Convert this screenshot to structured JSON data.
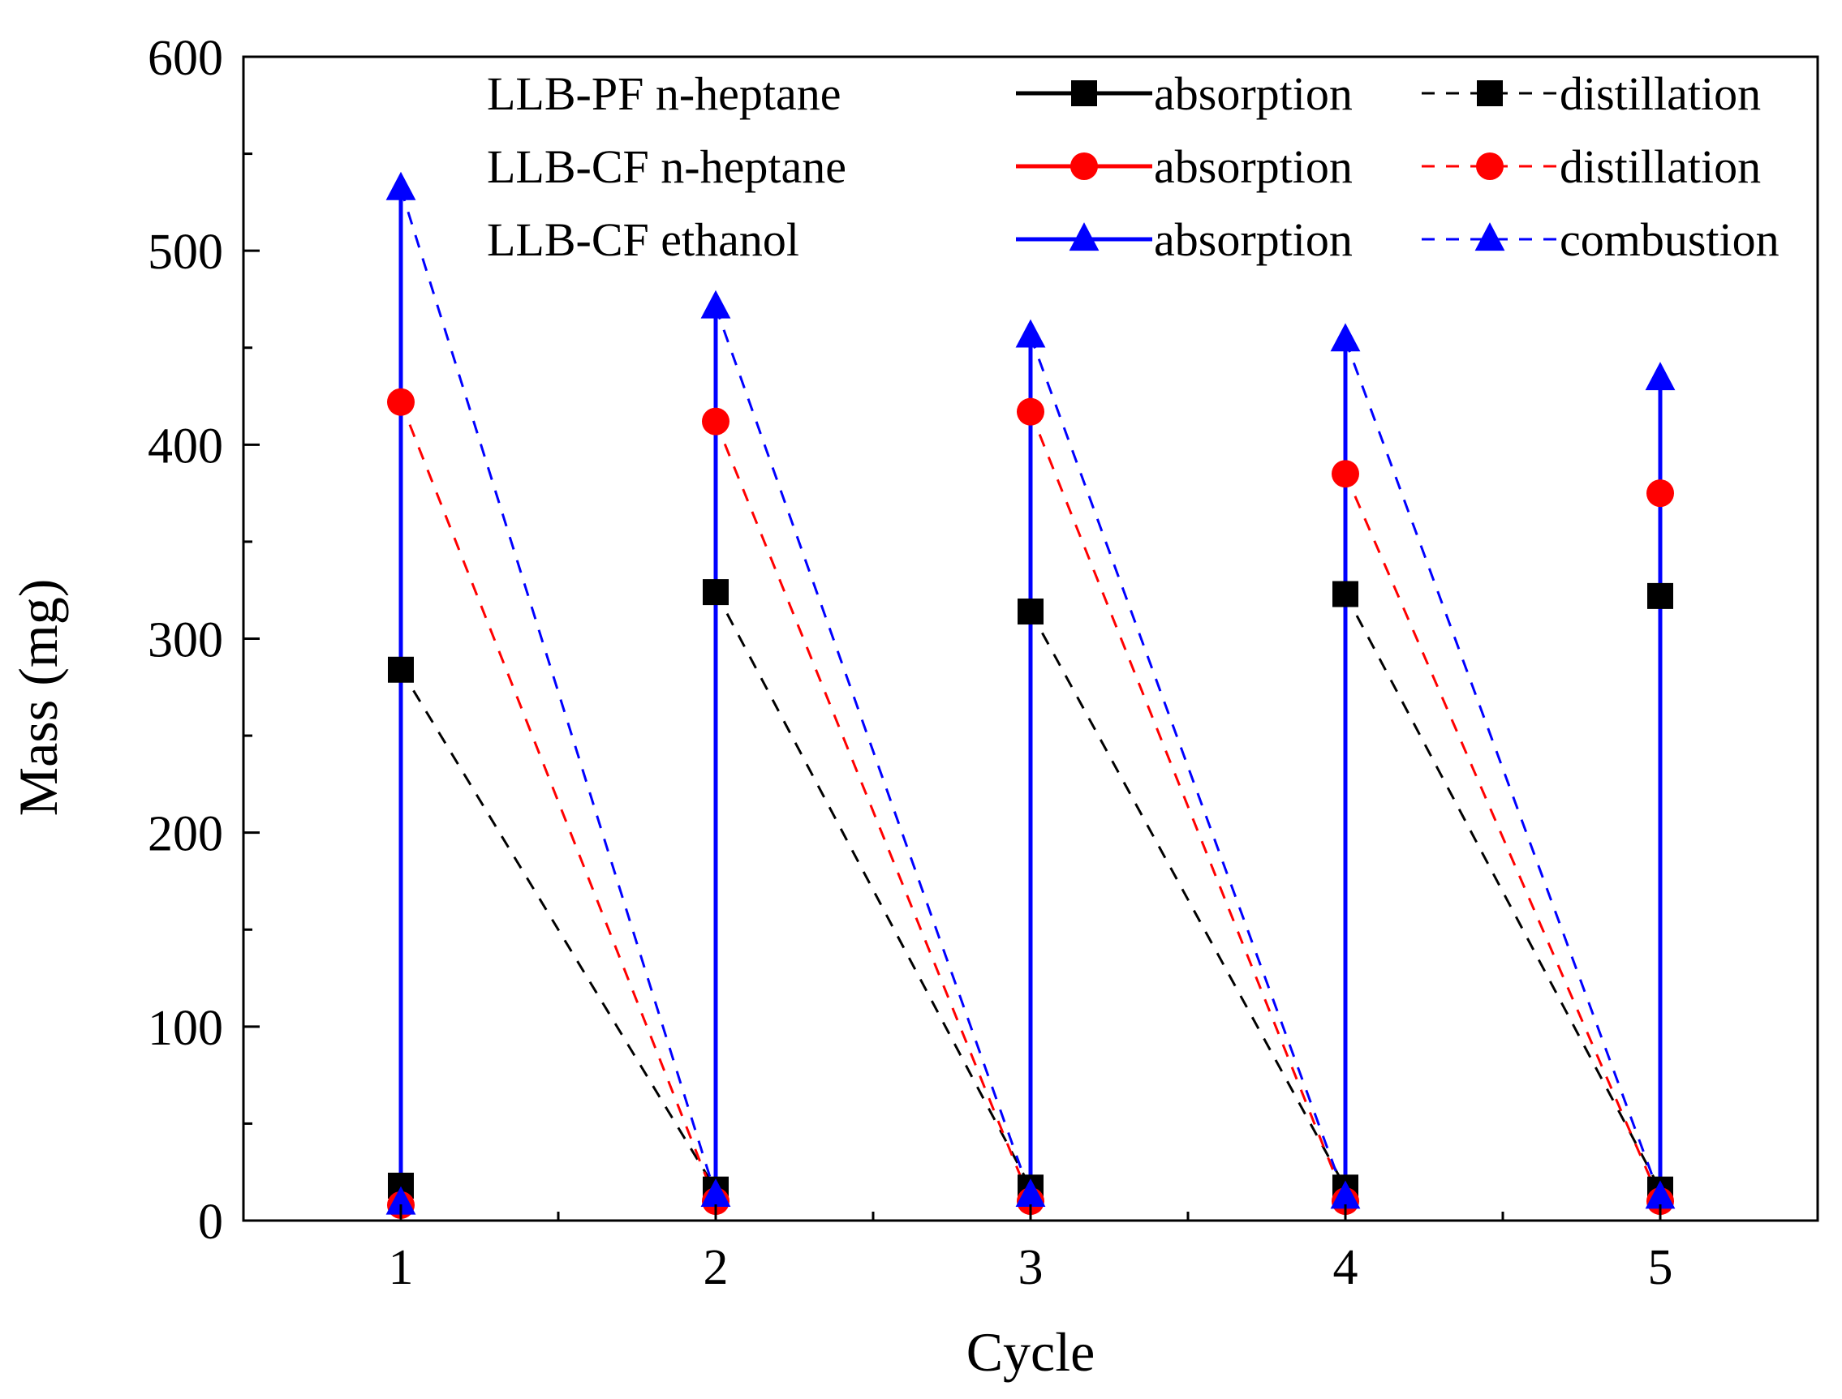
{
  "chart_data": {
    "type": "line",
    "title": "",
    "xlabel": "Cycle",
    "ylabel": "Mass (mg)",
    "xlim": [
      0.5,
      5.5
    ],
    "ylim": [
      0,
      600
    ],
    "xticks": [
      1,
      2,
      3,
      4,
      5
    ],
    "yticks": [
      0,
      100,
      200,
      300,
      400,
      500,
      600
    ],
    "grid": false,
    "legend_position": "top-right",
    "legend": {
      "rows": [
        {
          "group": "LLB-PF  n-heptane",
          "absorption_label": "absorption",
          "removal_label": "distillation",
          "color": "#000000",
          "marker": "square"
        },
        {
          "group": "LLB-CF  n-heptane",
          "absorption_label": "absorption",
          "removal_label": "distillation",
          "color": "#ff0000",
          "marker": "circle"
        },
        {
          "group": "LLB-CF  ethanol",
          "absorption_label": "absorption",
          "removal_label": "combustion",
          "color": "#0000ff",
          "marker": "triangle"
        }
      ]
    },
    "series": [
      {
        "name": "LLB-PF n-heptane",
        "color": "#000000",
        "marker": "square",
        "removal": "distillation",
        "cycles": [
          1,
          2,
          3,
          4,
          5
        ],
        "low": [
          18,
          16,
          17,
          17,
          16
        ],
        "high": [
          284,
          324,
          314,
          323,
          322
        ]
      },
      {
        "name": "LLB-CF n-heptane",
        "color": "#ff0000",
        "marker": "circle",
        "removal": "distillation",
        "cycles": [
          1,
          2,
          3,
          4,
          5
        ],
        "low": [
          8,
          10,
          10,
          10,
          10
        ],
        "high": [
          422,
          412,
          417,
          385,
          375
        ]
      },
      {
        "name": "LLB-CF ethanol",
        "color": "#0000ff",
        "marker": "triangle",
        "removal": "combustion",
        "cycles": [
          1,
          2,
          3,
          4,
          5
        ],
        "low": [
          9,
          13,
          13,
          12,
          12
        ],
        "high": [
          532,
          471,
          456,
          454,
          434
        ]
      }
    ]
  }
}
